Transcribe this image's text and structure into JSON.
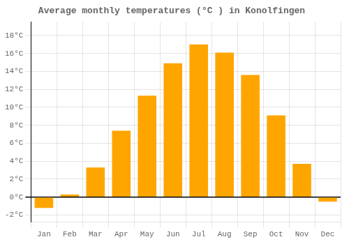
{
  "chart_data": {
    "type": "bar",
    "title": "Average monthly temperatures (°C ) in Konolfingen",
    "categories": [
      "Jan",
      "Feb",
      "Mar",
      "Apr",
      "May",
      "Jun",
      "Jul",
      "Aug",
      "Sep",
      "Oct",
      "Nov",
      "Dec"
    ],
    "values": [
      -1.2,
      0.3,
      3.3,
      7.4,
      11.3,
      14.9,
      17.0,
      16.1,
      13.6,
      9.1,
      3.7,
      -0.5
    ],
    "color": "#FFA500",
    "ylim": [
      -2.8,
      19.5
    ],
    "yticks": [
      {
        "value": -2,
        "label": "-2°C"
      },
      {
        "value": 0,
        "label": "0°C"
      },
      {
        "value": 2,
        "label": "2°C"
      },
      {
        "value": 4,
        "label": "4°C"
      },
      {
        "value": 6,
        "label": "6°C"
      },
      {
        "value": 8,
        "label": "8°C"
      },
      {
        "value": 10,
        "label": "10°C"
      },
      {
        "value": 12,
        "label": "12°C"
      },
      {
        "value": 14,
        "label": "14°C"
      },
      {
        "value": 16,
        "label": "16°C"
      },
      {
        "value": 18,
        "label": "18°C"
      }
    ],
    "grid": true
  }
}
